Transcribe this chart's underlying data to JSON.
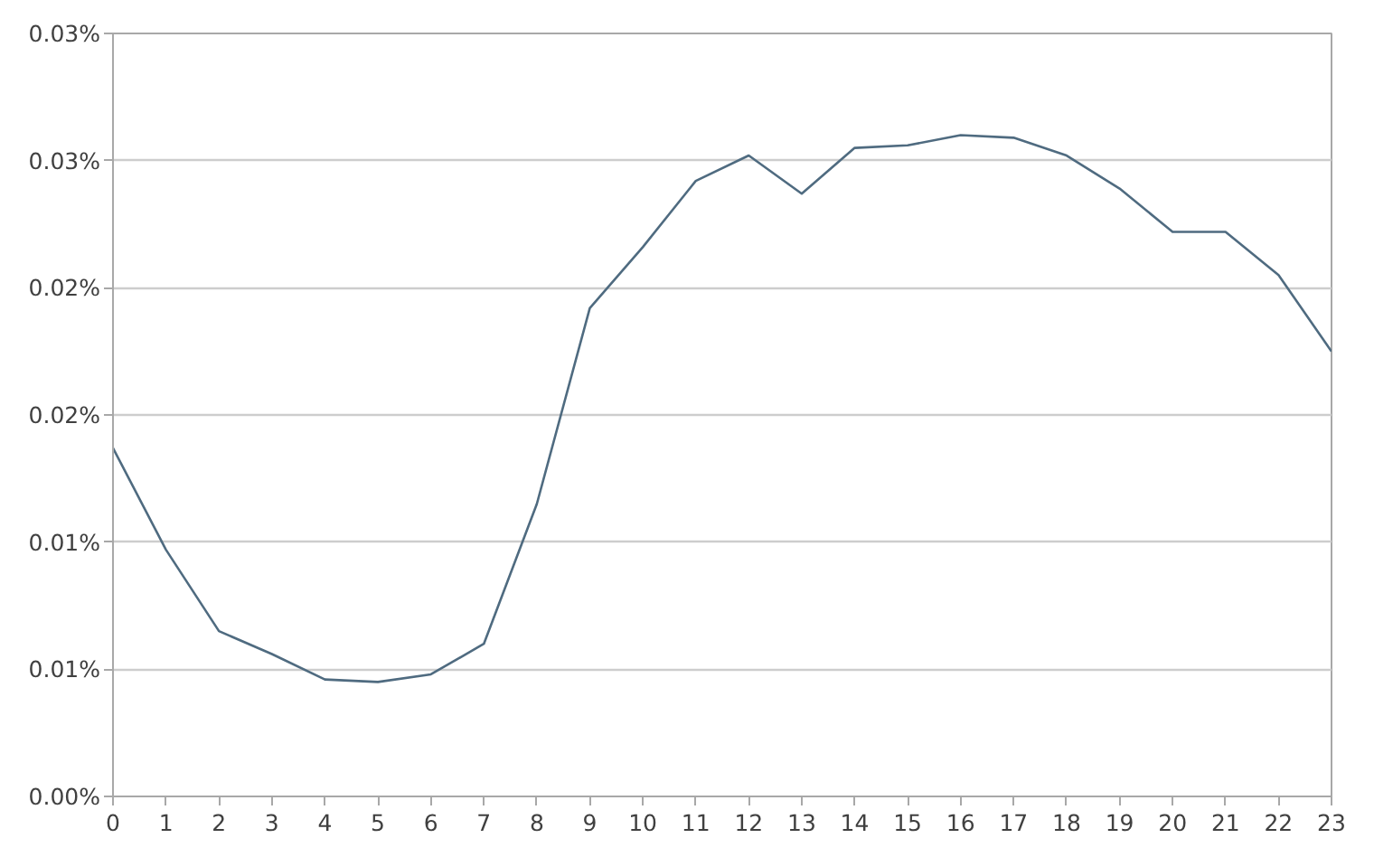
{
  "chart_data": {
    "type": "line",
    "x": [
      0,
      1,
      2,
      3,
      4,
      5,
      6,
      7,
      8,
      9,
      10,
      11,
      12,
      13,
      14,
      15,
      16,
      17,
      18,
      19,
      20,
      21,
      22,
      23
    ],
    "series": [
      {
        "color": "#4f6b80",
        "values": [
          0.0137,
          0.0097,
          0.0065,
          0.0056,
          0.0046,
          0.0045,
          0.0048,
          0.006,
          0.0115,
          0.0192,
          0.0216,
          0.0242,
          0.0252,
          0.0237,
          0.0255,
          0.0256,
          0.026,
          0.0259,
          0.0252,
          0.0239,
          0.0222,
          0.0222,
          0.0205,
          0.0175
        ]
      }
    ],
    "xlim": [
      0,
      23
    ],
    "xticks": [
      0,
      1,
      2,
      3,
      4,
      5,
      6,
      7,
      8,
      9,
      10,
      11,
      12,
      13,
      14,
      15,
      16,
      17,
      18,
      19,
      20,
      21,
      22,
      23
    ],
    "ylim": [
      0,
      0.03
    ],
    "yticks": [
      {
        "value": 0,
        "label": "0.00%"
      },
      {
        "value": 0.005,
        "label": "0.01%"
      },
      {
        "value": 0.01,
        "label": "0.01%"
      },
      {
        "value": 0.015,
        "label": "0.02%"
      },
      {
        "value": 0.02,
        "label": "0.02%"
      },
      {
        "value": 0.025,
        "label": "0.03%"
      },
      {
        "value": 0.03,
        "label": "0.03%"
      }
    ],
    "grid": "y"
  }
}
